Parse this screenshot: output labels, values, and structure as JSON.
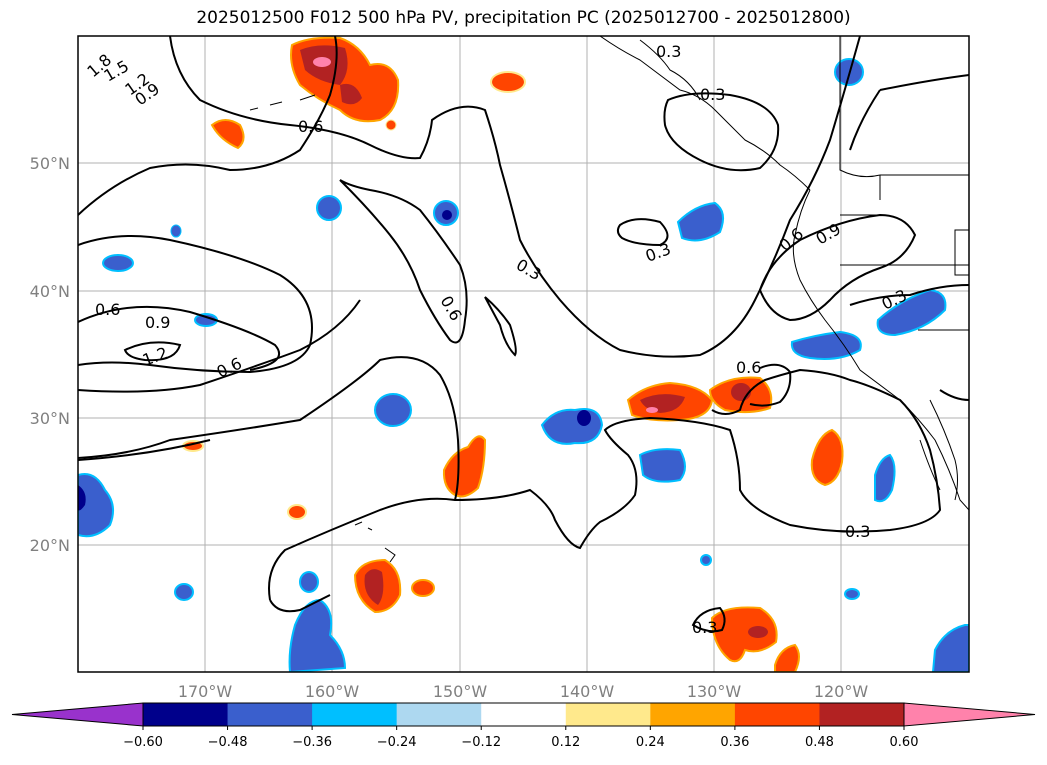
{
  "title": "2025012500 F012 500 hPa PV, precipitation PC (2025012700 - 2025012800)",
  "map": {
    "lat_labels": [
      "50°N",
      "40°N",
      "30°N",
      "20°N"
    ],
    "lon_labels": [
      "170°W",
      "160°W",
      "150°W",
      "140°W",
      "130°W",
      "120°W"
    ],
    "grid": true
  },
  "contour_labels": [
    "1.8",
    "1.5",
    "1.2",
    "0.9",
    "0.6",
    "0.3",
    "0.3",
    "0.3",
    "0.6",
    "0.9",
    "0.6",
    "0.9",
    "1.2",
    "0.6",
    "0.6",
    "0.3",
    "0.3",
    "0.6",
    "0.3",
    "0.3"
  ],
  "colorbar": {
    "ticks": [
      "−0.60",
      "−0.48",
      "−0.36",
      "−0.24",
      "−0.12",
      "0.12",
      "0.24",
      "0.36",
      "0.48",
      "0.60"
    ],
    "colors": [
      "#9932cc",
      "#00008b",
      "#3a5fcd",
      "#00bfff",
      "#add8f0",
      "#ffffff",
      "#ffe98c",
      "#ffa500",
      "#ff4500",
      "#b22222",
      "#ff82ab"
    ]
  }
}
